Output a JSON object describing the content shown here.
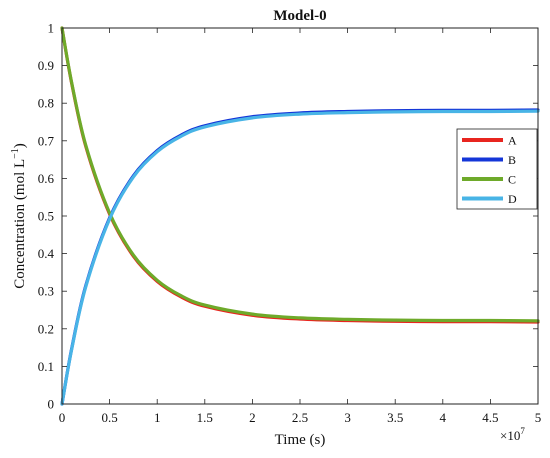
{
  "chart_data": {
    "type": "line",
    "title": "Model-0",
    "xlabel": "Time (s)",
    "ylabel_main": "Concentration (mol L",
    "ylabel_sup": "−1",
    "ylabel_close": ")",
    "x_exponent_base": "×10",
    "x_exponent_power": "7",
    "xlim": [
      0,
      5
    ],
    "ylim": [
      0,
      1
    ],
    "x_ticks": [
      0,
      0.5,
      1,
      1.5,
      2,
      2.5,
      3,
      3.5,
      4,
      4.5,
      5
    ],
    "x_tick_labels": [
      "0",
      "0.5",
      "1",
      "1.5",
      "2",
      "2.5",
      "3",
      "3.5",
      "4",
      "4.5",
      "5"
    ],
    "y_ticks": [
      0,
      0.1,
      0.2,
      0.3,
      0.4,
      0.5,
      0.6,
      0.7,
      0.8,
      0.9,
      1
    ],
    "y_tick_labels": [
      "0",
      "0.1",
      "0.2",
      "0.3",
      "0.4",
      "0.5",
      "0.6",
      "0.7",
      "0.8",
      "0.9",
      "1"
    ],
    "grid": false,
    "legend_position": "right",
    "x": [
      0,
      0.1,
      0.25,
      0.5,
      0.75,
      1,
      1.25,
      1.5,
      2,
      2.5,
      3,
      3.5,
      4,
      4.5,
      5
    ],
    "series": [
      {
        "name": "A",
        "color": "#e8251f",
        "values": [
          1.0,
          0.855,
          0.685,
          0.505,
          0.393,
          0.326,
          0.285,
          0.26,
          0.236,
          0.226,
          0.222,
          0.22,
          0.219,
          0.219,
          0.218
        ]
      },
      {
        "name": "B",
        "color": "#1436d8",
        "values": [
          0.0,
          0.145,
          0.315,
          0.495,
          0.607,
          0.674,
          0.715,
          0.74,
          0.764,
          0.774,
          0.778,
          0.78,
          0.781,
          0.781,
          0.782
        ]
      },
      {
        "name": "C",
        "color": "#6eaa2a",
        "values": [
          1.0,
          0.857,
          0.688,
          0.508,
          0.396,
          0.329,
          0.288,
          0.263,
          0.239,
          0.229,
          0.225,
          0.223,
          0.222,
          0.222,
          0.221
        ]
      },
      {
        "name": "D",
        "color": "#48b4e6",
        "values": [
          0.0,
          0.143,
          0.312,
          0.492,
          0.604,
          0.671,
          0.712,
          0.737,
          0.761,
          0.771,
          0.775,
          0.777,
          0.778,
          0.778,
          0.779
        ]
      }
    ]
  }
}
